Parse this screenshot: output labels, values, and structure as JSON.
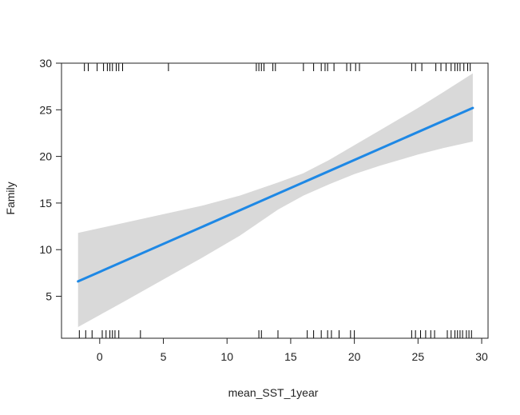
{
  "chart_data": {
    "type": "line",
    "title": "",
    "xlabel": "mean_SST_1year",
    "ylabel": "Family",
    "xlim": [
      -3,
      30.5
    ],
    "ylim": [
      0.5,
      30
    ],
    "xticks": [
      0,
      5,
      10,
      15,
      20,
      25,
      30
    ],
    "yticks": [
      5,
      10,
      15,
      20,
      25,
      30
    ],
    "grid": false,
    "colors": {
      "fit_line": "#1e88e5",
      "confidence_band": "#d9d9d9",
      "rug": "#000000"
    },
    "series": [
      {
        "x": [
          -1.7,
          29.3
        ],
        "y": [
          6.6,
          25.2
        ]
      }
    ],
    "confidence_band": {
      "x": [
        -1.7,
        2,
        5,
        8,
        11,
        14,
        16,
        18,
        20,
        22,
        25,
        27,
        29.3
      ],
      "upper": [
        11.8,
        12.9,
        13.8,
        14.7,
        15.8,
        17.2,
        18.2,
        19.6,
        21.2,
        22.8,
        25.2,
        26.9,
        28.9
      ],
      "lower": [
        1.7,
        4.5,
        6.8,
        9.1,
        11.5,
        14.3,
        15.8,
        17.0,
        18.1,
        19.0,
        20.2,
        20.9,
        21.6
      ]
    },
    "rug_top": [
      -1.2,
      -0.9,
      -0.2,
      0.3,
      0.6,
      0.8,
      1.0,
      1.3,
      1.5,
      1.8,
      5.4,
      12.3,
      12.5,
      12.7,
      12.9,
      13.6,
      13.8,
      16.0,
      16.8,
      17.4,
      17.7,
      17.9,
      18.4,
      19.4,
      19.7,
      20.1,
      20.4,
      24.5,
      24.8,
      25.3,
      26.4,
      26.8,
      27.2,
      27.6,
      27.9,
      28.1,
      28.3,
      28.6,
      28.9,
      29.1
    ],
    "rug_bottom": [
      -1.6,
      -1.1,
      -0.6,
      0.2,
      0.5,
      0.8,
      1.0,
      1.2,
      1.5,
      3.2,
      12.5,
      12.7,
      14.0,
      16.3,
      16.8,
      17.4,
      17.9,
      18.2,
      18.8,
      19.7,
      20.0,
      24.5,
      24.8,
      25.2,
      25.6,
      26.0,
      26.3,
      27.3,
      27.6,
      27.9,
      28.1,
      28.3,
      28.5,
      28.8,
      29.0,
      29.2
    ]
  }
}
